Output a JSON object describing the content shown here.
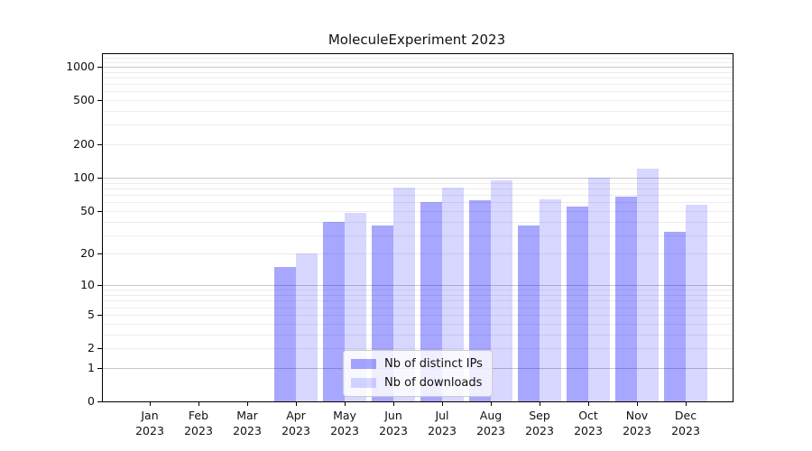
{
  "chart_data": {
    "type": "bar",
    "title": "MoleculeExperiment 2023",
    "categories": [
      "Jan 2023",
      "Feb 2023",
      "Mar 2023",
      "Apr 2023",
      "May 2023",
      "Jun 2023",
      "Jul 2023",
      "Aug 2023",
      "Sep 2023",
      "Oct 2023",
      "Nov 2023",
      "Dec 2023"
    ],
    "series": [
      {
        "name": "Nb of distinct IPs",
        "values": [
          0,
          0,
          0,
          15,
          40,
          37,
          60,
          63,
          37,
          55,
          67,
          32
        ],
        "color": "rgba(0, 0, 255, 0.345)"
      },
      {
        "name": "Nb of downloads",
        "values": [
          0,
          0,
          0,
          20,
          48,
          81,
          81,
          95,
          64,
          100,
          121,
          57
        ],
        "color": "rgba(0, 0, 255, 0.155)"
      }
    ],
    "yscale": "log1p",
    "yticks": [
      1000,
      500,
      200,
      100,
      50,
      20,
      10,
      5,
      2,
      1,
      0
    ],
    "grid_major_values": [
      1,
      10,
      100,
      1000
    ],
    "grid_minor_values": [
      2,
      3,
      4,
      5,
      6,
      7,
      8,
      9,
      20,
      30,
      40,
      50,
      60,
      70,
      80,
      90,
      200,
      300,
      400,
      500,
      600,
      700,
      800,
      900,
      1100,
      1200,
      1300
    ],
    "ylim": [
      0,
      1300
    ],
    "xlabel": "",
    "ylabel": "",
    "grid": true,
    "legend_position": "lower center"
  },
  "colors": {
    "background": "#ffffff",
    "spine": "#000000",
    "grid_major": "#c8c8c8",
    "grid_minor": "#ececec",
    "text": "#111111"
  }
}
